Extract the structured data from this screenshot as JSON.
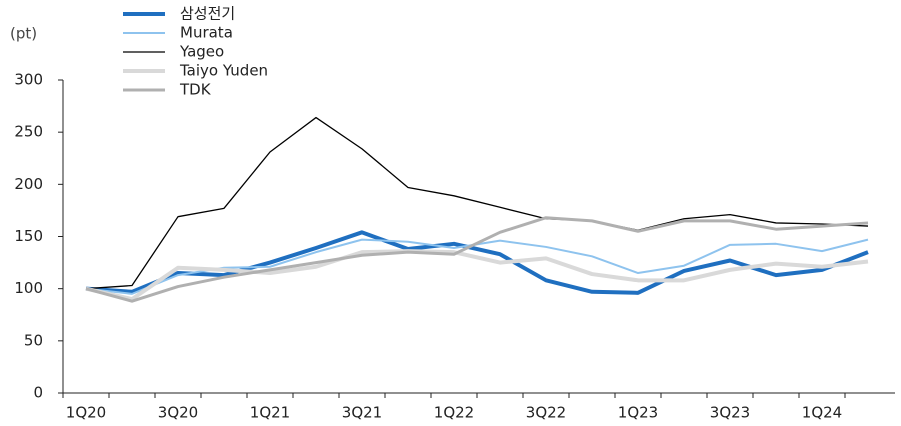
{
  "chart_data": {
    "type": "line",
    "y_label": "(pt)",
    "categories": [
      "1Q20",
      null,
      "3Q20",
      null,
      "1Q21",
      null,
      "3Q21",
      null,
      "1Q22",
      null,
      "3Q22",
      null,
      "1Q23",
      null,
      "3Q23",
      null,
      "1Q24",
      null
    ],
    "series": [
      {
        "name": "삼성전기",
        "color": "#1f6fc0",
        "values": [
          100,
          97,
          115,
          113,
          125,
          139,
          154,
          138,
          143,
          133,
          108,
          97,
          96,
          117,
          127,
          113,
          118,
          135
        ]
      },
      {
        "name": "Murata",
        "color": "#8ec3ee",
        "values": [
          100,
          95,
          113,
          120,
          121,
          135,
          147,
          145,
          139,
          146,
          140,
          131,
          115,
          122,
          142,
          143,
          136,
          147
        ]
      },
      {
        "name": "Yageo",
        "color": "#000000",
        "values": [
          100,
          103,
          169,
          177,
          231,
          264,
          234,
          197,
          189,
          178,
          167,
          165,
          156,
          167,
          171,
          163,
          162,
          160
        ]
      },
      {
        "name": "Taiyo Yuden",
        "color": "#d9d9d9",
        "values": [
          100,
          90,
          120,
          118,
          115,
          121,
          135,
          136,
          135,
          125,
          129,
          114,
          108,
          108,
          118,
          124,
          121,
          126
        ]
      },
      {
        "name": "TDK",
        "color": "#b0b0b0",
        "values": [
          100,
          88,
          102,
          111,
          118,
          125,
          132,
          135,
          133,
          154,
          168,
          165,
          155,
          165,
          165,
          157,
          160,
          163
        ]
      }
    ],
    "ylim": [
      0,
      300
    ],
    "yticks": [
      0,
      50,
      100,
      150,
      200,
      250,
      300
    ],
    "grid": false,
    "legend": "top-left"
  }
}
